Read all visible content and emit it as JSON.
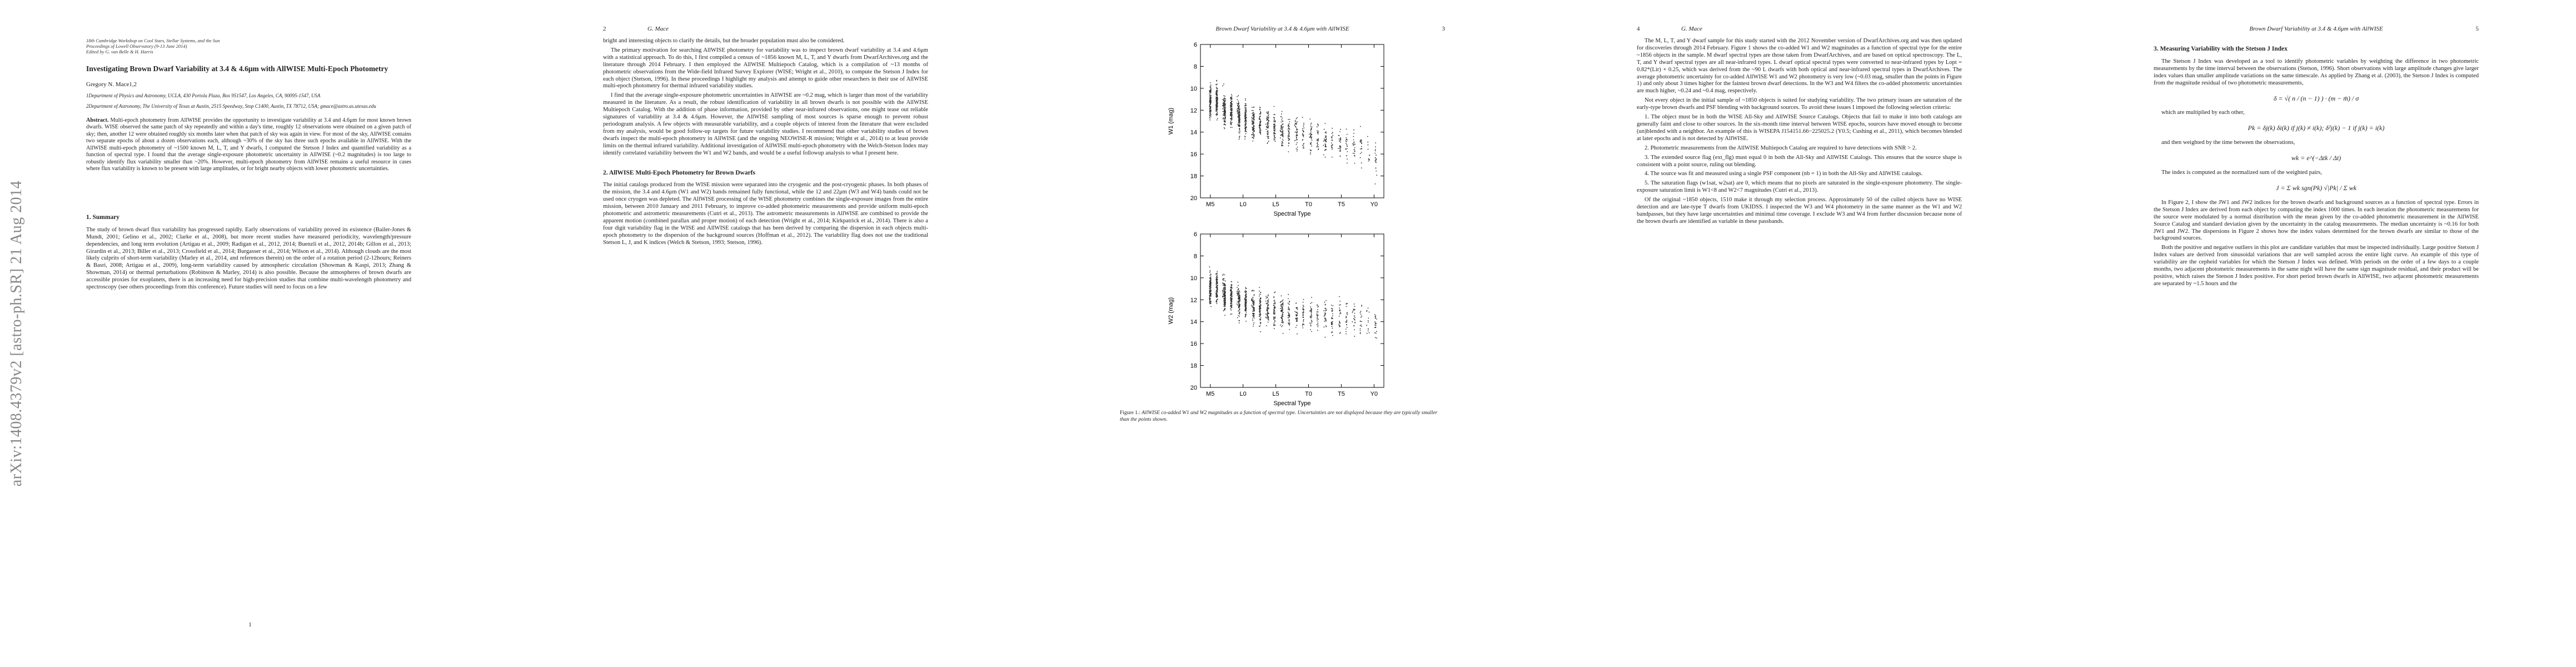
{
  "arxiv_stamp": "arXiv:1408.4379v2  [astro-ph.SR]  21 Aug 2014",
  "p1": {
    "conf": [
      "18th Cambridge Workshop on Cool Stars, Stellar Systems, and the Sun",
      "Proceedings of Lowell Observatory (9-13 June 2014)",
      "Edited by G. van Belle & H. Harris"
    ],
    "title": "Investigating Brown Dwarf Variability at 3.4 & 4.6μm with AllWISE Multi-Epoch Photometry",
    "author": "Gregory N. Mace1,2",
    "affil1": "1Department of Physics and Astronomy, UCLA, 430 Portola Plaza, Box 951547, Los Angeles, CA, 90095-1547, USA",
    "affil2": "2Department of Astronomy, The University of Texas at Austin, 2515 Speedway, Stop C1400, Austin, TX 78712, USA; gmace@astro.as.utexas.edu",
    "abstract_label": "Abstract.",
    "abstract": "Multi-epoch photometry from AllWISE provides the opportunity to investigate variability at 3.4 and 4.6μm for most known brown dwarfs. WISE observed the same patch of sky repeatedly and within a day's time, roughly 12 observations were obtained on a given patch of sky; then, another 12 were obtained roughly six months later when that patch of sky was again in view. For most of the sky, AllWISE contains two separate epochs of about a dozen observations each, although ~30% of the sky has three such epochs available in AllWISE. With the AllWISE multi-epoch photometry of ~1500 known M, L, T, and Y dwarfs, I computed the Stetson J Index and quantified variability as a function of spectral type. I found that the average single-exposure photometric uncertainty in AllWISE (~0.2 magnitudes) is too large to robustly identify flux variability smaller than ~20%. However, multi-epoch photometry from AllWISE remains a useful resource in cases where flux variability is known to be present with large amplitudes, or for bright nearby objects with lower photometric uncertainties.",
    "h_summary": "1.   Summary",
    "summary": "The study of brown dwarf flux variability has progressed rapidly. Early observations of variability proved its existence (Bailer-Jones & Mundt, 2001; Gelino et al., 2002; Clarke et al., 2008), but more recent studies have measured periodicity, wavelength/pressure dependencies, and long term evolution (Artigau et al., 2009; Radigan et al., 2012, 2014; Buenzli et al., 2012, 2014b; Gillon et al., 2013; Girardin et al., 2013; Biller et al., 2013; Crossfield et al., 2014; Burgasser et al., 2014; Wilson et al., 2014). Although clouds are the most likely culprits of short-term variability (Marley et al., 2014, and references therein) on the order of a rotation period (2-12hours; Reiners & Basri, 2008; Artigau et al., 2009), long-term variability caused by atmospheric circulation (Showman & Kaspi, 2013; Zhang & Showman, 2014) or thermal perturbations (Robinson & Marley, 2014) is also possible. Because the atmospheres of brown dwarfs are accessible proxies for exoplanets, there is an increasing need for high-precision studies that combine multi-wavelength photometry and spectroscopy (see others proceedings from this conference). Future studies will need to focus on a few",
    "page_num": "1"
  },
  "p2": {
    "header_num": "2",
    "header_run": "G. Mace",
    "paras": [
      "bright and interesting objects to clarify the details, but the broader population must also be considered.",
      "The primary motivation for searching AllWISE photometry for variability was to inspect brown dwarf variability at 3.4 and 4.6μm with a statistical approach. To do this, I first compiled a census of ~1856 known M, L, T, and Y dwarfs from DwarfArchives.org and the literature through 2014 February. I then employed the AllWISE Multiepoch Catalog, which is a compilation of ~13 months of photometric observations from the Wide-field Infrared Survey Explorer (WISE; Wright et al., 2010), to compute the Stetson J Index for each object (Stetson, 1996). In these proceedings I highlight my analysis and attempt to guide other researchers in their use of AllWISE multi-epoch photometry for thermal infrared variability studies.",
      "I find that the average single-exposure photometric uncertainties in AllWISE are ~0.2 mag, which is larger than most of the variability measured in the literature. As a result, the robust identification of variability in all brown dwarfs is not possible with the AllWISE Multiepoch Catalog. With the addition of phase information, provided by other near-infrared observations, one might tease out reliable signatures of variability at 3.4 & 4.6μm. However, the AllWISE sampling of most sources is sparse enough to prevent robust periodogram analysis. A few objects with measurable variability, and a couple objects of interest from the literature that were excluded from my analysis, would be good follow-up targets for future variability studies. I recommend that other variability studies of brown dwarfs inspect the multi-epoch photometry in AllWISE (and the ongoing NEOWISE-R mission; Wright et al., 2014) to at least provide limits on the thermal infrared variability. Additional investigation of AllWISE multi-epoch photometry with the Welch-Stetson Index may identify correlated variability between the W1 and W2 bands, and would be a useful followup analysis to what I present here."
    ],
    "h2": "2.   AllWISE Multi-Epoch Photometry for Brown Dwarfs",
    "paras2": [
      "The initial catalogs produced from the WISE mission were separated into the cryogenic and the post-cryogenic phases. In both phases of the mission, the 3.4 and 4.6μm (W1 and W2) bands remained fully functional, while the 12 and 22μm (W3 and W4) bands could not be used once cryogen was depleted. The AllWISE processing of the WISE photometry combines the single-exposure images from the entire mission, between 2010 January and 2011 February, to improve co-added photometric measurements and provide uniform multi-epoch photometric and astrometric measurements (Cutri et al., 2013). The astrometric measurements in AllWISE are combined to provide the apparent motion (combined parallax and proper motion) of each detection (Wright et al., 2014; Kirkpatrick et al., 2014). There is also a four digit variability flag in the WISE and AllWISE catalogs that has been derived by comparing the dispersion in each objects multi-epoch photometry to the dispersion of the background sources (Hoffman et al., 2012). The variability flag does not use the traditional Stetson L, J, and K indices (Welch & Stetson, 1993; Stetson, 1996)."
    ]
  },
  "p3": {
    "header_run": "Brown Dwarf Variability at 3.4 & 4.6μm with AllWISE",
    "header_num": "3",
    "caption_label": "Figure 1.:",
    "caption": "AllWISE co-added W1 and W2 magnitudes as a function of spectral type. Uncertainties are not displayed because they are typically smaller than the points shown."
  },
  "chart_data": [
    {
      "type": "scatter",
      "categories": [
        "M5",
        "L0",
        "L5",
        "T0",
        "T5",
        "Y0"
      ],
      "ylabel": "W1 (mag)",
      "xlabel": "Spectral Type",
      "ylim": [
        20,
        6
      ],
      "yticks": [
        6,
        8,
        10,
        12,
        14,
        16,
        18,
        20
      ],
      "trend": {
        "spt": [
          0,
          1,
          2,
          3,
          4,
          5,
          6,
          7,
          8,
          9,
          10,
          11,
          12
        ],
        "center": [
          11.2,
          12.0,
          12.8,
          13.2,
          13.6,
          14.0,
          14.4,
          14.6,
          14.8,
          15.0,
          15.4,
          16.2,
          17.0
        ]
      },
      "notes": "~1500 dwarfs, dense cloud of points, brightening toward early types"
    },
    {
      "type": "scatter",
      "categories": [
        "M5",
        "L0",
        "L5",
        "T0",
        "T5",
        "Y0"
      ],
      "ylabel": "W2 (mag)",
      "xlabel": "Spectral Type",
      "ylim": [
        20,
        6
      ],
      "yticks": [
        6,
        8,
        10,
        12,
        14,
        16,
        18,
        20
      ],
      "trend": {
        "spt": [
          0,
          1,
          2,
          3,
          4,
          5,
          6,
          7,
          8,
          9,
          10,
          11,
          12
        ],
        "center": [
          11.0,
          11.7,
          12.4,
          12.8,
          13.0,
          13.2,
          13.4,
          13.5,
          13.6,
          13.6,
          13.8,
          14.2,
          14.6
        ]
      },
      "notes": "scatter of W2 co-added magnitudes vs spectral type"
    }
  ],
  "p4": {
    "header_num": "4",
    "header_run": "G. Mace",
    "paras": [
      "The M, L, T, and Y dwarf sample for this study started with the 2012 November version of DwarfArchives.org and was then updated for discoveries through 2014 February. Figure 1 shows the co-added W1 and W2 magnitudes as a function of spectral type for the entire ~1856 objects in the sample. M dwarf spectral types are those taken from DwarfArchives, and are based on optical spectroscopy. The L, T, and Y dwarf spectral types are all near-infrared types. L dwarf optical spectral types were converted to near-infrared types by Lopt = 0.82*(Lir) + 0.25, which was derived from the ~90 L dwarfs with both optical and near-infrared spectral types in DwarfArchives. The average photometric uncertainty for co-added AllWISE W1 and W2 photometry is very low (~0.03 mag, smaller than the points in Figure 1) and only about 3 times higher for the faintest brown dwarf detections. In the W3 and W4 filters the co-added photometric uncertainties are much higher, ~0.24 and ~0.4 mag, respectively.",
      "Not every object in the initial sample of ~1850 objects is suited for studying variability. The two primary issues are saturation of the early-type brown dwarfs and PSF blending with background sources. To avoid these issues I imposed the following selection criteria:"
    ],
    "criteria": [
      "1. The object must be in both the WISE All-Sky and AllWISE Source Catalogs. Objects that fail to make it into both catalogs are generally faint and close to other sources. In the six-month time interval between WISE epochs, sources have moved enough to become (un)blended with a neighbor. An example of this is WISEPA J154151.66−225025.2 (Y0.5; Cushing et al., 2011), which becomes blended at later epochs and is not detected by AllWISE.",
      "2. Photometric measurements from the AllWISE Multiepoch Catalog are required to have detections with SNR > 2.",
      "3. The extended source flag (ext_flg) must equal 0 in both the All-Sky and AllWISE Catalogs. This ensures that the source shape is consistent with a point source, ruling out blending.",
      "4. The source was fit and measured using a single PSF component (nb = 1) in both the All-Sky and AllWISE catalogs.",
      "5. The saturation flags (w1sat, w2sat) are 0, which means that no pixels are saturated in the single-exposure photometry. The single-exposure saturation limit is W1<8 and W2<7 magnitudes (Cutri et al., 2013)."
    ],
    "tail": "Of the original ~1850 objects, 1510 make it through my selection process. Approximately 50 of the culled objects have no WISE detection and are late-type T dwarfs from UKIDSS. I inspected the W3 and W4 photometry in the same manner as the W1 and W2 bandpasses, but they have large uncertainties and minimal time coverage. I exclude W3 and W4 from further discussion because none of the brown dwarfs are identified as variable in these passbands."
  },
  "p5": {
    "header_run": "Brown Dwarf Variability at 3.4 & 4.6μm with AllWISE",
    "header_num": "5",
    "h3": "3.   Measuring Variability with the Stetson J Index",
    "intro": "The Stetson J Index was developed as a tool to identify photometric variables by weighting the difference in two photometric measurements by the time interval between the observations (Stetson, 1996). Short observations with large amplitude changes give larger index values than smaller amplitude variations on the same timescale. As applied by Zhang et al. (2003), the Stetson J Index is computed from the magnitude residual of two photometric measurements,",
    "eq1": "δ = √( n / (n − 1) ) · (m − m̄) / σ",
    "mid1": "which are multiplied by each other,",
    "eq2": "Pk = δj(k) δi(k)   if j(k) ≠ i(k);   δ²j(k) − 1   if j(k) = i(k)",
    "mid2": "and then weighted by the time between the observations,",
    "eq3": "wk = e^(−Δtk / Δt)",
    "mid3": "The index is computed as the normalized sum of the weighted pairs,",
    "eq4": "J = Σ wk sgn(Pk) √|Pk|  /  Σ wk",
    "body": [
      "In Figure 2, I show the JW1 and JW2 indices for the brown dwarfs and background sources as a function of spectral type. Errors in the Stetson J Index are derived from each object by computing the index 1000 times. In each iteration the photometric measurements for the source were modulated by a normal distribution with the mean given by the co-added photometric measurement in the AllWISE Source Catalog and standard deviation given by the uncertainty in the catalog measurements. The median uncertainty is ~0.16 for both JW1 and JW2. The dispersions in Figure 2 shows how the index values determined for the brown dwarfs are similar to those of the background sources.",
      "Both the positive and negative outliers in this plot are candidate variables that must be inspected individually. Large positive Stetson J Index values are derived from sinusoidal variations that are well sampled across the entire light curve. An example of this type of variability are the cepheid variables for which the Stetson J Index was defined. With periods on the order of a few days to a couple months, two adjacent photometric measurements in the same night will have the same sign magnitude residual, and their product will be positive, which raises the Stetson J Index positive. For short period brown dwarfs in AllWISE, two adjacent photometric measurements are separated by ~1.5 hours and the"
    ]
  }
}
